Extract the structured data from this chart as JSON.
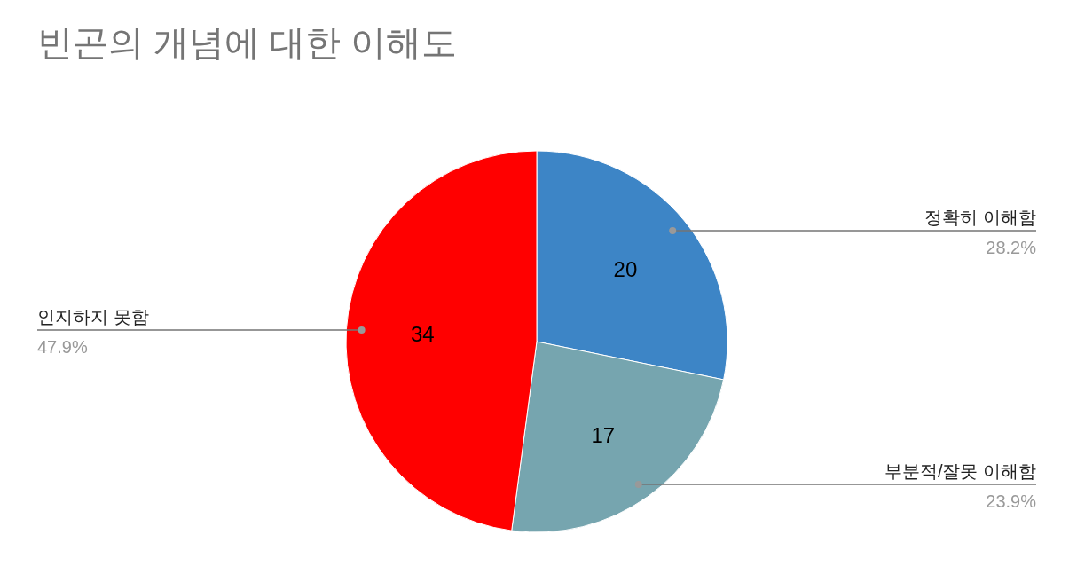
{
  "chart_data": {
    "type": "pie",
    "title": "빈곤의 개념에 대한 이해도",
    "categories": [
      "정확히 이해함",
      "부분적/잘못 이해함",
      "인지하지 못함"
    ],
    "values": [
      28.2,
      23.9,
      47.9
    ],
    "colors": [
      "#3d85c6",
      "#76a5af",
      "#ff0000"
    ],
    "value_labels": [
      "28.2%",
      "23.9%",
      "47.9%"
    ],
    "annotations": [
      {
        "text": "20",
        "x": "정확히 이해함"
      },
      {
        "text": "17",
        "x": "부분적/잘못 이해함"
      },
      {
        "text": "34",
        "x": "인지하지 못함"
      }
    ]
  }
}
